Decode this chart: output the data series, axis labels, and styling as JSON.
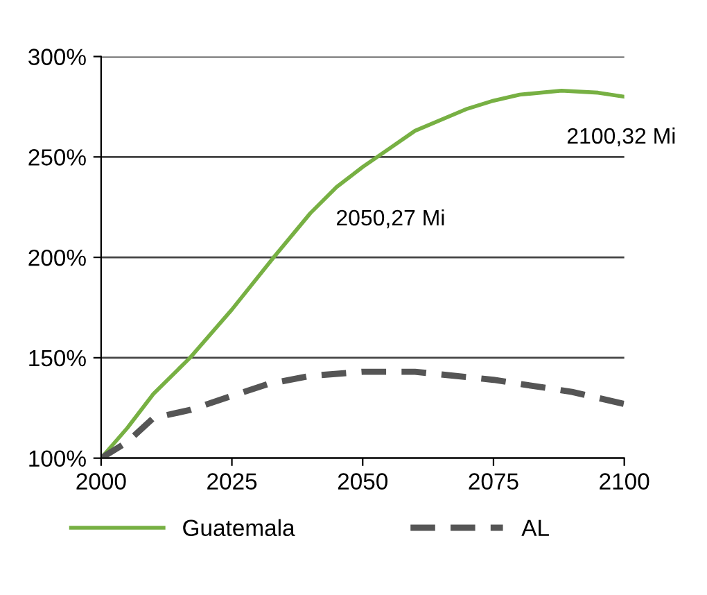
{
  "chart_data": {
    "type": "line",
    "grid": "y",
    "legend": "bottom",
    "xlim": [
      2000,
      2100
    ],
    "xticks": [
      2000,
      2025,
      2050,
      2075,
      2100
    ],
    "ylim": [
      100,
      300
    ],
    "yticks": [
      {
        "value": 100,
        "label": "100%"
      },
      {
        "value": 150,
        "label": "150%"
      },
      {
        "value": 200,
        "label": "200%"
      },
      {
        "value": 250,
        "label": "250%"
      },
      {
        "value": 300,
        "label": "300%"
      }
    ],
    "series": [
      {
        "name": "Guatemala",
        "color": "#77b043",
        "line_style": "solid",
        "x": [
          2000,
          2005,
          2010,
          2017,
          2025,
          2033,
          2040,
          2045,
          2050,
          2055,
          2060,
          2070,
          2075,
          2080,
          2088,
          2095,
          2100
        ],
        "values": [
          100,
          115,
          132,
          150,
          174,
          200,
          222,
          235,
          245,
          254,
          263,
          274,
          278,
          281,
          283,
          282,
          280
        ]
      },
      {
        "name": "AL",
        "color": "#555555",
        "line_style": "dashed",
        "x": [
          2000,
          2005,
          2010,
          2017,
          2025,
          2032,
          2040,
          2050,
          2060,
          2075,
          2090,
          2100
        ],
        "values": [
          100,
          108,
          120,
          124,
          131,
          137,
          141,
          143,
          143,
          139,
          133,
          127
        ]
      }
    ],
    "annotations": [
      {
        "text": "2050,27 Mi",
        "x": 2050,
        "y": 245
      },
      {
        "text": "2100,32 Mi",
        "x": 2100,
        "y": 280
      }
    ]
  }
}
